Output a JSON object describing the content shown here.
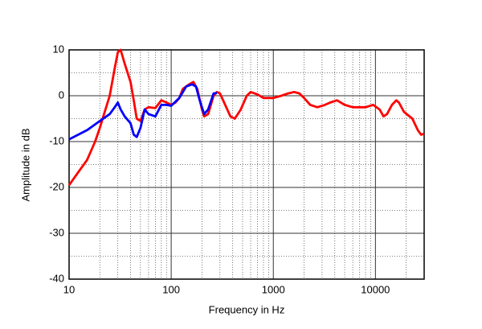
{
  "chart_data": {
    "type": "line",
    "xlabel": "Frequency in Hz",
    "ylabel": "Amplitude in dB",
    "xscale": "log",
    "xlim": [
      10,
      30000
    ],
    "ylim": [
      -40,
      10
    ],
    "xticks": [
      10,
      100,
      1000,
      10000
    ],
    "yticks": [
      -40,
      -30,
      -20,
      -10,
      0,
      10
    ],
    "grid": true,
    "series": [
      {
        "color": "#ff0000",
        "x": [
          10,
          12,
          15,
          18,
          20,
          22,
          25,
          28,
          30,
          32,
          35,
          40,
          43,
          46,
          50,
          55,
          60,
          70,
          80,
          90,
          100,
          110,
          120,
          130,
          150,
          165,
          180,
          200,
          210,
          230,
          260,
          280,
          300,
          330,
          380,
          420,
          480,
          550,
          600,
          700,
          800,
          1000,
          1200,
          1400,
          1600,
          1800,
          2000,
          2300,
          2700,
          3200,
          3600,
          4200,
          5000,
          6000,
          8000,
          9500,
          11000,
          12000,
          13000,
          14500,
          16000,
          17000,
          19000,
          23000,
          26000,
          28000,
          30000
        ],
        "values": [
          -19.5,
          -17,
          -14,
          -10,
          -7,
          -4,
          0,
          6,
          9.5,
          10,
          7,
          3,
          -1,
          -5,
          -5.5,
          -3,
          -2.5,
          -2.7,
          -1,
          -1.5,
          -2,
          -1.5,
          -0.5,
          1.5,
          2.5,
          3,
          1.5,
          -3,
          -4.5,
          -4,
          0,
          0.8,
          0.5,
          -1.5,
          -4.5,
          -5,
          -3,
          0,
          0.8,
          0.3,
          -0.5,
          -0.5,
          0,
          0.5,
          0.8,
          0.5,
          -0.5,
          -2,
          -2.5,
          -2,
          -1.5,
          -1,
          -2,
          -2.5,
          -2.5,
          -2,
          -3,
          -4.5,
          -4,
          -2,
          -1,
          -1.5,
          -3.5,
          -5,
          -7.5,
          -8.5,
          -8.3
        ]
      },
      {
        "color": "#0000ff",
        "x": [
          10,
          15,
          20,
          25,
          28,
          30,
          32,
          35,
          40,
          43,
          46,
          50,
          55,
          60,
          70,
          80,
          90,
          100,
          120,
          140,
          160,
          175,
          190,
          210,
          230,
          260,
          280
        ],
        "values": [
          -9.5,
          -7.5,
          -5.5,
          -4,
          -2.5,
          -1.5,
          -3,
          -4.5,
          -6,
          -8.5,
          -9,
          -7,
          -3,
          -4,
          -4.5,
          -2,
          -2,
          -2.2,
          -0.5,
          2,
          2.5,
          2,
          -1,
          -4,
          -3,
          0.5,
          0.6
        ]
      }
    ]
  }
}
